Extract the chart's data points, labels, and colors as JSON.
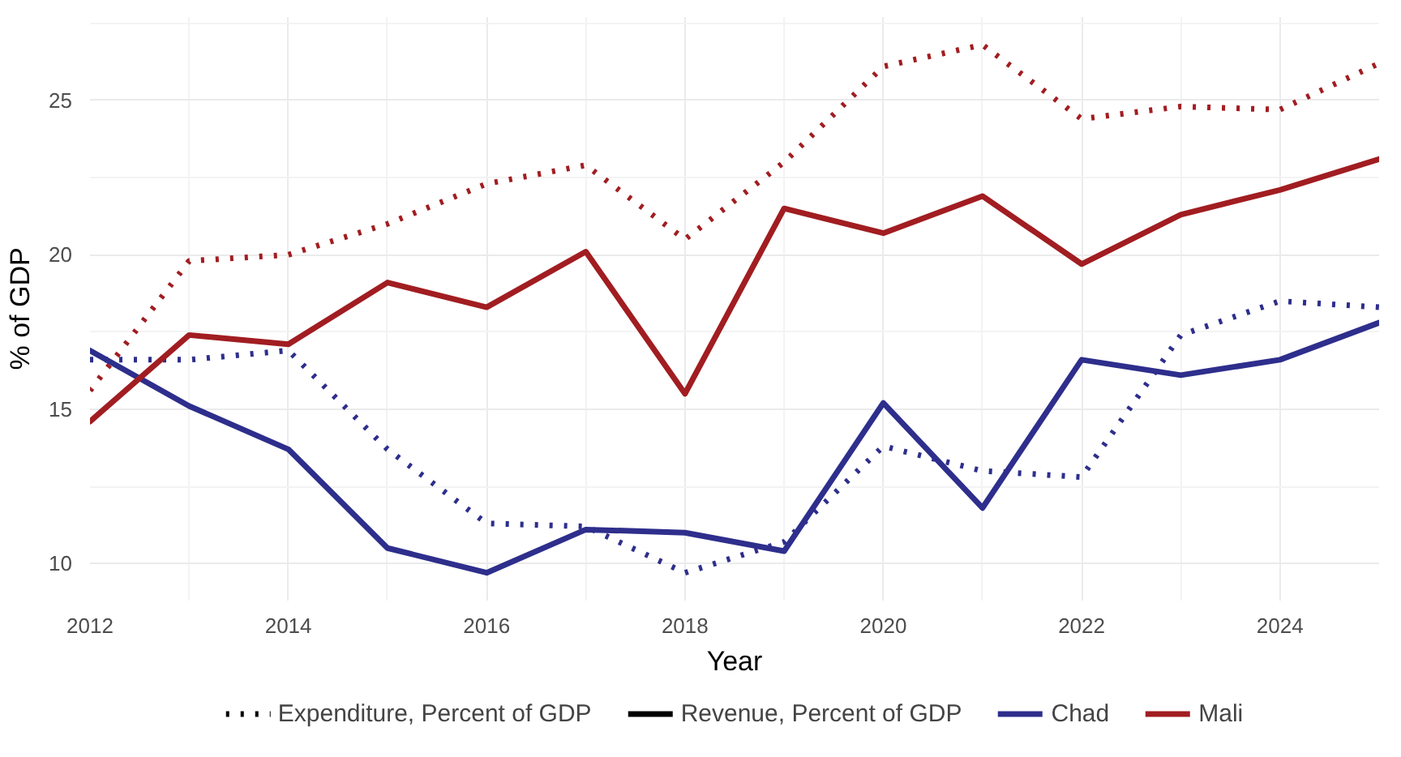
{
  "chart_data": {
    "type": "line",
    "xlabel": "Year",
    "ylabel": "% of GDP",
    "x": [
      2012,
      2013,
      2014,
      2015,
      2016,
      2017,
      2018,
      2019,
      2020,
      2021,
      2022,
      2023,
      2024,
      2025
    ],
    "xlim": [
      2012,
      2025
    ],
    "xticks": [
      2012,
      2014,
      2016,
      2018,
      2020,
      2022,
      2024
    ],
    "ylim": [
      8.8,
      27.7
    ],
    "yticks": [
      10,
      15,
      20,
      25
    ],
    "grid": true,
    "legend": "bottom",
    "annotations": [
      "Expenditure, Percent of GDP",
      "Revenue, Percent of GDP"
    ],
    "series": [
      {
        "line_style": "dotted",
        "color": "#2e2e8c",
        "values": [
          16.6,
          16.6,
          16.9,
          13.7,
          11.3,
          11.2,
          9.7,
          10.7,
          13.8,
          13.0,
          12.8,
          17.4,
          18.5,
          18.3
        ]
      },
      {
        "line_style": "dotted",
        "color": "#a11d21",
        "values": [
          15.6,
          19.8,
          20.0,
          21.0,
          22.3,
          22.9,
          20.5,
          23.0,
          26.1,
          26.8,
          24.4,
          24.8,
          24.7,
          26.2
        ]
      },
      {
        "name": "Chad",
        "line_style": "solid",
        "color": "#2e2e8c",
        "values": [
          16.9,
          15.1,
          13.7,
          10.5,
          9.7,
          11.1,
          11.0,
          10.4,
          15.2,
          11.8,
          16.6,
          16.1,
          16.6,
          17.8
        ]
      },
      {
        "name": "Mali",
        "line_style": "solid",
        "color": "#a11d21",
        "values": [
          14.6,
          17.4,
          17.1,
          19.1,
          18.3,
          20.1,
          15.5,
          21.5,
          20.7,
          21.9,
          19.7,
          21.3,
          22.1,
          23.1
        ]
      }
    ]
  }
}
